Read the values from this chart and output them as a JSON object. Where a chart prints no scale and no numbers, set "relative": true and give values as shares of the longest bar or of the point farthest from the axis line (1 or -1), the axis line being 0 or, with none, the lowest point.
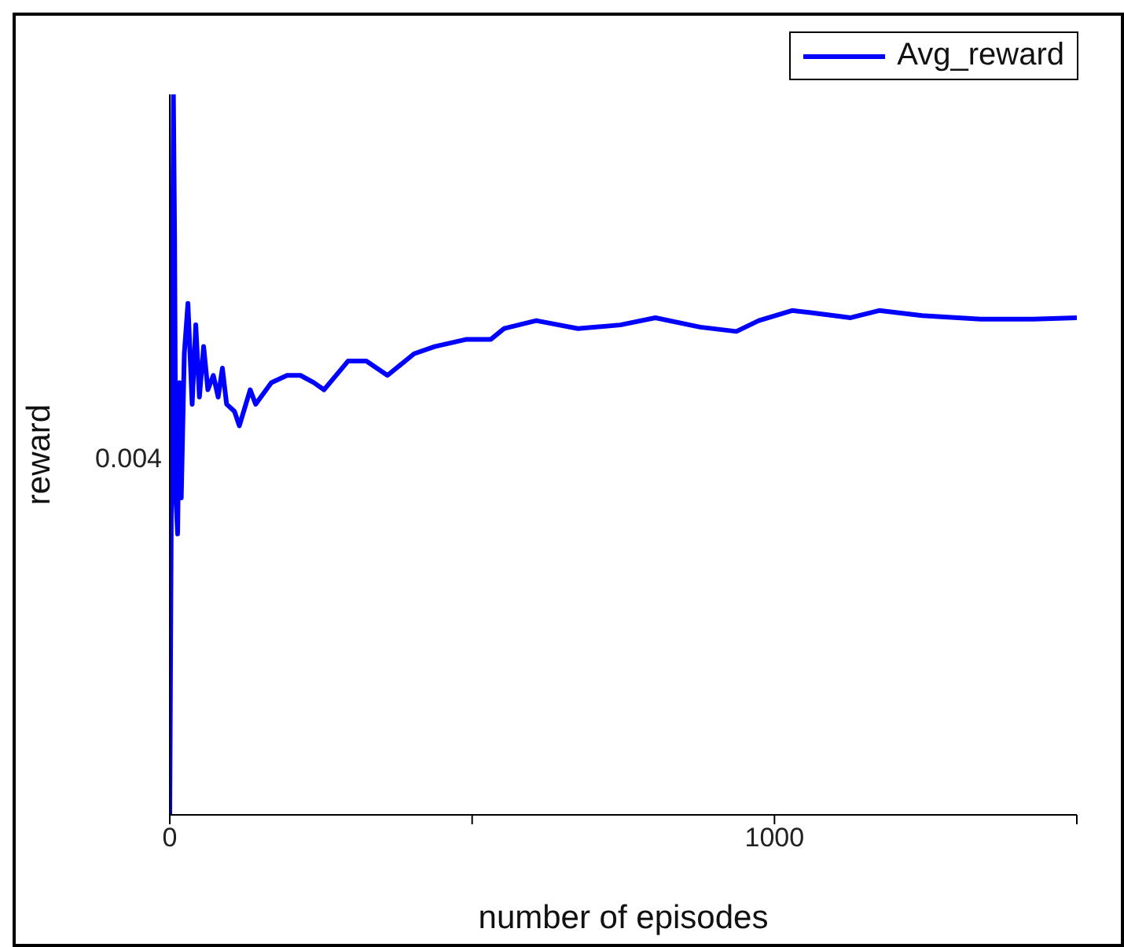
{
  "chart_data": {
    "type": "line",
    "xlabel": "number of episodes",
    "ylabel": "reward",
    "relative": true,
    "annotations": [
      "0.004"
    ],
    "xlim": [
      0,
      1500
    ],
    "xticks": [
      0,
      {
        "value": 500,
        "label": null
      },
      1000,
      {
        "value": 1500,
        "label": null
      }
    ],
    "legend": "top right",
    "grid": false,
    "marker": "none",
    "line_style": "solid",
    "series": [
      {
        "name": "Avg_reward",
        "color": "#0000ff",
        "x": [
          0,
          6,
          8,
          10,
          13,
          16,
          19,
          24,
          30,
          37,
          43,
          49,
          56,
          63,
          72,
          80,
          87,
          94,
          107,
          115,
          133,
          142,
          168,
          194,
          216,
          238,
          255,
          295,
          325,
          360,
          404,
          438,
          491,
          531,
          553,
          606,
          675,
          745,
          803,
          877,
          937,
          974,
          1029,
          1060,
          1126,
          1173,
          1244,
          1341,
          1428,
          1500
        ],
        "values": [
          0,
          1,
          0.8,
          0.44,
          0.39,
          0.6,
          0.44,
          0.64,
          0.71,
          0.57,
          0.68,
          0.58,
          0.65,
          0.59,
          0.61,
          0.58,
          0.62,
          0.57,
          0.56,
          0.54,
          0.59,
          0.57,
          0.6,
          0.61,
          0.61,
          0.6,
          0.59,
          0.63,
          0.63,
          0.61,
          0.64,
          0.65,
          0.66,
          0.66,
          0.675,
          0.686,
          0.675,
          0.68,
          0.69,
          0.677,
          0.671,
          0.686,
          0.7,
          0.697,
          0.69,
          0.7,
          0.693,
          0.688,
          0.688,
          0.69
        ]
      }
    ]
  }
}
